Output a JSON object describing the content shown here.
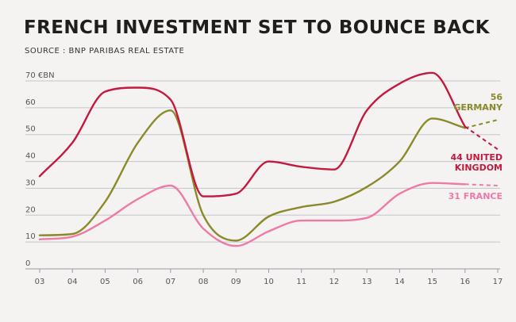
{
  "header": {
    "title": "FRENCH INVESTMENT SET TO BOUNCE BACK",
    "source": "SOURCE : BNP PARIBAS REAL ESTATE"
  },
  "chart_data": {
    "type": "line",
    "title": "FRENCH INVESTMENT SET TO BOUNCE BACK",
    "subtitle": "SOURCE : BNP PARIBAS REAL ESTATE",
    "ylabel": "€BN",
    "ylim": [
      0,
      70
    ],
    "yticks": [
      "70 €BN",
      "60",
      "50",
      "40",
      "30",
      "20",
      "10",
      "0"
    ],
    "categories": [
      "03",
      "04",
      "05",
      "06",
      "07",
      "08",
      "09",
      "10",
      "11",
      "12",
      "13",
      "14",
      "15",
      "16",
      "17"
    ],
    "x": [
      2003,
      2004,
      2005,
      2006,
      2007,
      2008,
      2009,
      2010,
      2011,
      2012,
      2013,
      2014,
      2015,
      2016,
      2017
    ],
    "grid": true,
    "forecast_from": 2016,
    "series": [
      {
        "name": "UNITED KINGDOM",
        "label_value": "44",
        "label_lines": [
          "44 UNITED",
          "KINGDOM"
        ],
        "color": "#c5183e",
        "values": [
          34.5,
          47,
          66,
          67.5,
          63,
          27,
          28,
          40,
          38,
          37,
          59,
          69,
          73,
          53,
          44.5
        ]
      },
      {
        "name": "GERMANY",
        "label_value": "56",
        "label_lines": [
          "56",
          "GERMANY"
        ],
        "color": "#8a8a2a",
        "values": [
          12.5,
          13,
          25,
          47,
          59,
          20,
          10.5,
          19.5,
          23,
          25,
          30.5,
          40,
          56,
          52.5,
          55.5
        ]
      },
      {
        "name": "FRANCE",
        "label_value": "31",
        "label_lines": [
          "31 FRANCE"
        ],
        "color": "#f07aa7",
        "values": [
          11,
          12,
          18,
          26,
          31,
          15,
          8.5,
          14,
          18,
          18,
          19,
          28,
          32,
          31.5,
          31
        ]
      }
    ]
  }
}
